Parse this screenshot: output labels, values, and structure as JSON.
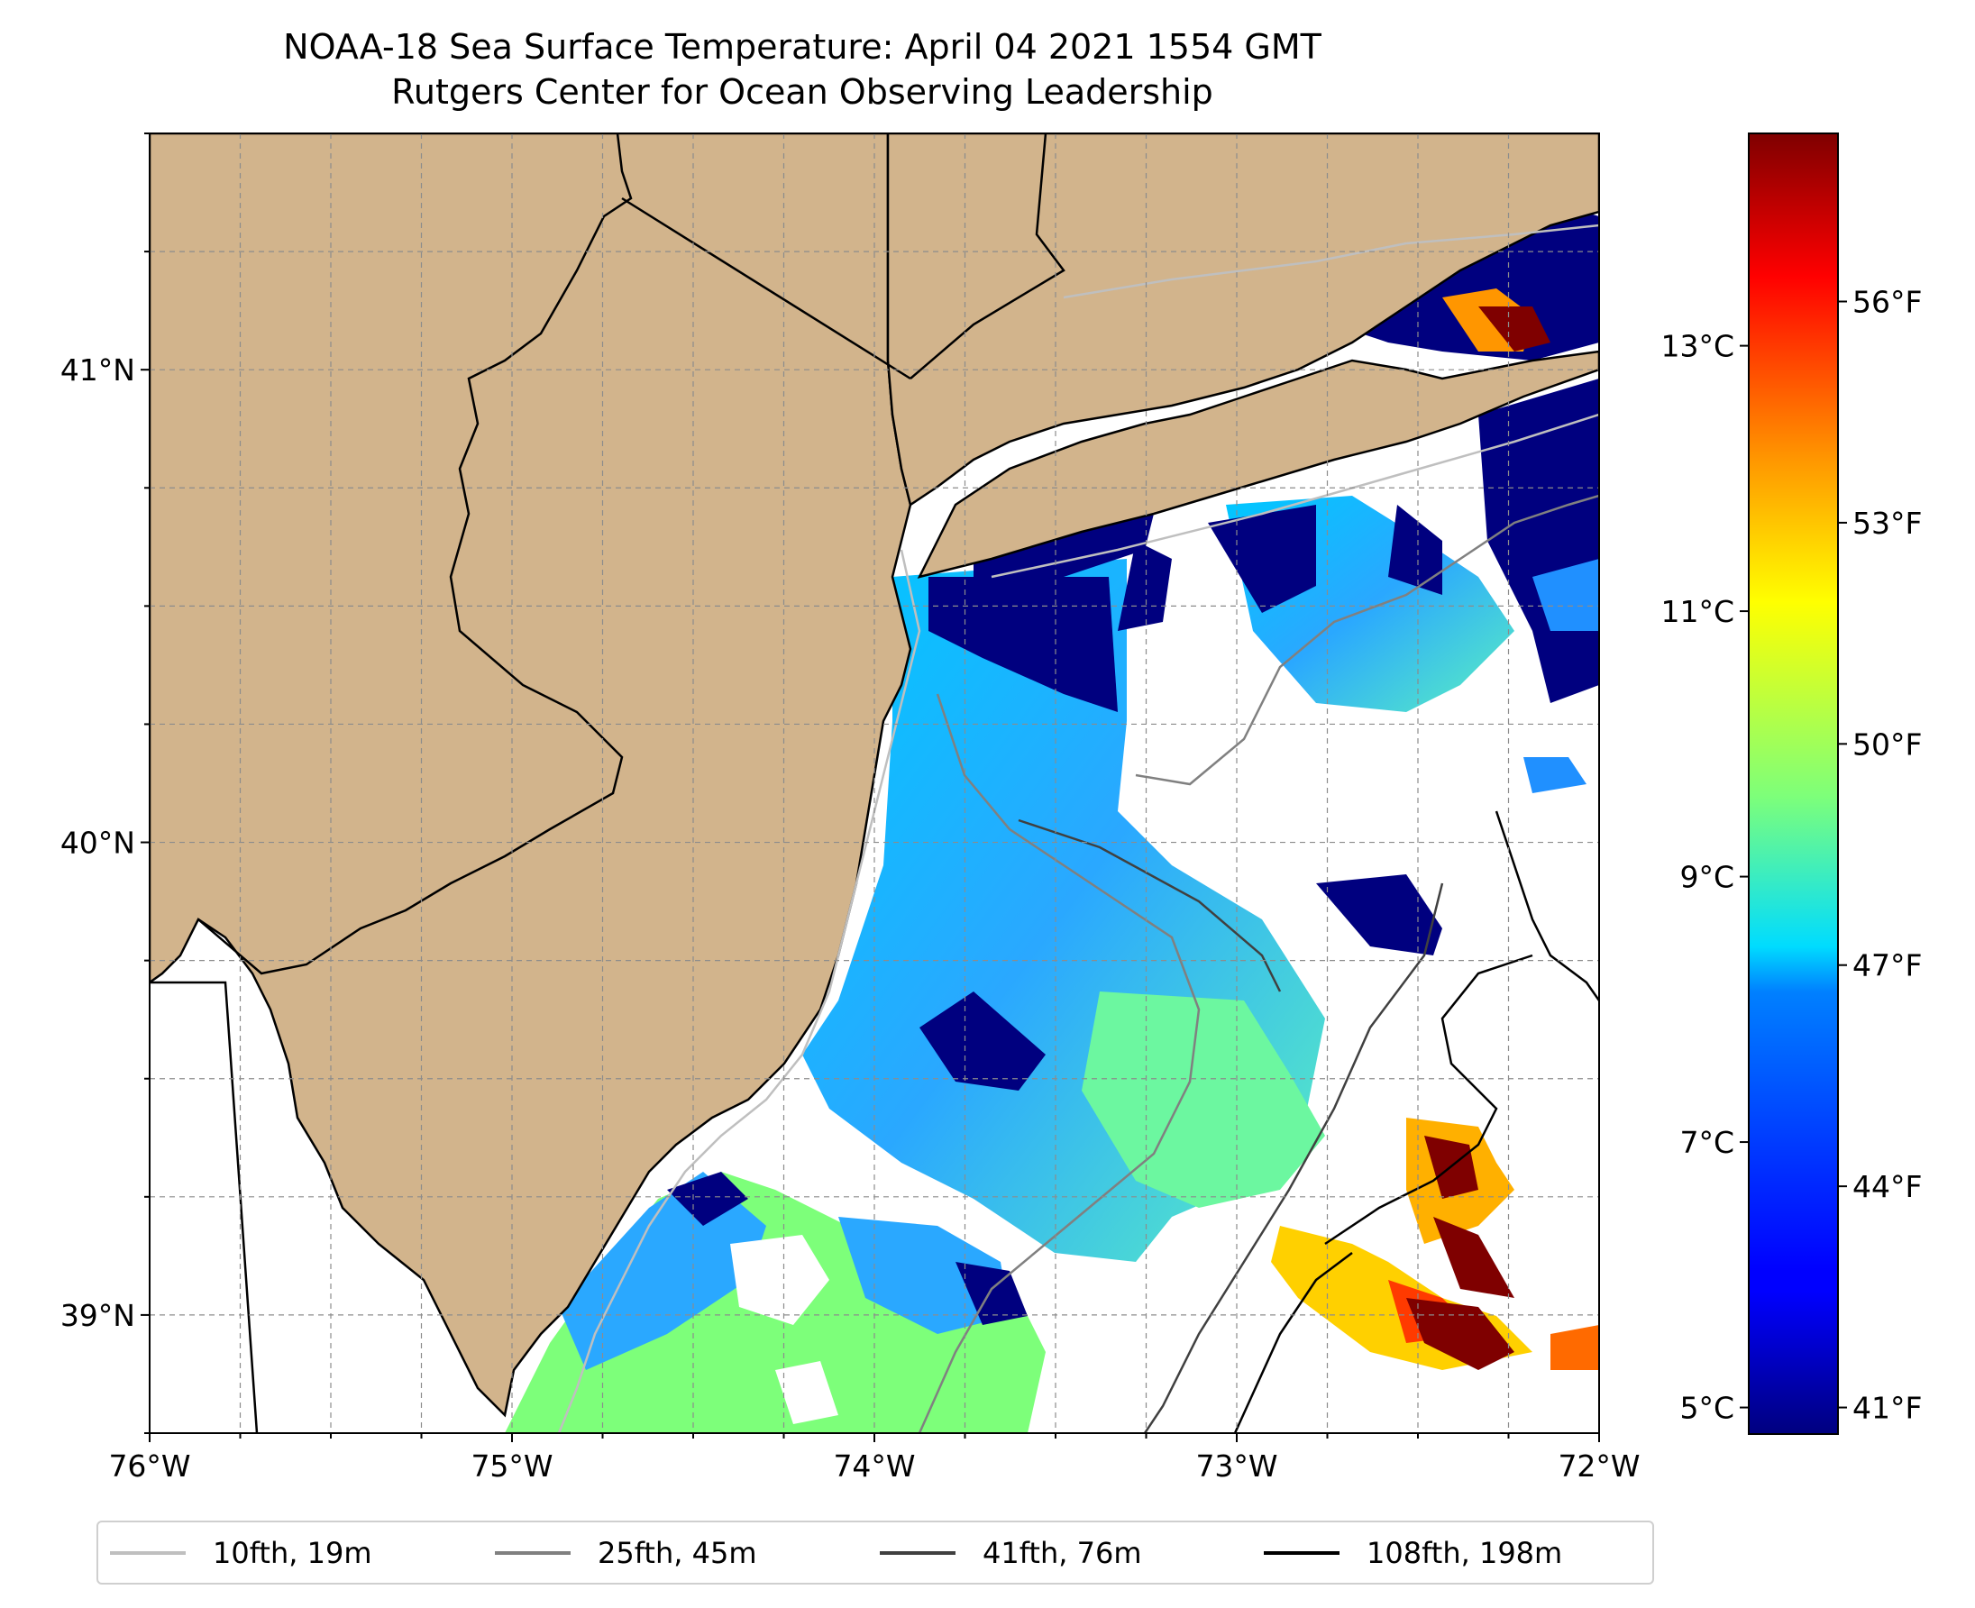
{
  "title": {
    "line1": "NOAA-18 Sea Surface Temperature: April 04 2021 1554 GMT",
    "line2": "Rutgers Center for Ocean Observing Leadership"
  },
  "map": {
    "lon_range": [
      -76.0,
      -72.0
    ],
    "lat_range": [
      38.75,
      41.5
    ],
    "x_ticks": [
      {
        "value": -76,
        "label": "76°W"
      },
      {
        "value": -75,
        "label": "75°W"
      },
      {
        "value": -74,
        "label": "74°W"
      },
      {
        "value": -73,
        "label": "73°W"
      },
      {
        "value": -72,
        "label": "72°W"
      }
    ],
    "y_ticks": [
      {
        "value": 41,
        "label": "41°N"
      },
      {
        "value": 40,
        "label": "40°N"
      },
      {
        "value": 39,
        "label": "39°N"
      }
    ],
    "gridlines": true,
    "colors": {
      "land": "#d2b48c",
      "ocean_no_data": "#ffffff",
      "coastline": "#000000"
    }
  },
  "colorbar": {
    "colormap": "jet",
    "celsius_range": [
      4.8,
      14.6
    ],
    "celsius_ticks": [
      {
        "value": 5,
        "label": "5°C"
      },
      {
        "value": 7,
        "label": "7°C"
      },
      {
        "value": 9,
        "label": "9°C"
      },
      {
        "value": 11,
        "label": "11°C"
      },
      {
        "value": 13,
        "label": "13°C"
      }
    ],
    "fahrenheit_ticks": [
      {
        "value": 41,
        "label": "41°F"
      },
      {
        "value": 44,
        "label": "44°F"
      },
      {
        "value": 47,
        "label": "47°F"
      },
      {
        "value": 50,
        "label": "50°F"
      },
      {
        "value": 53,
        "label": "53°F"
      },
      {
        "value": 56,
        "label": "56°F"
      }
    ]
  },
  "legend": [
    {
      "label": "10fth, 19m",
      "color": "#bfbfbf"
    },
    {
      "label": "25fth, 45m",
      "color": "#808080"
    },
    {
      "label": "41fth, 76m",
      "color": "#404040"
    },
    {
      "label": "108fth, 198m",
      "color": "#000000"
    }
  ]
}
